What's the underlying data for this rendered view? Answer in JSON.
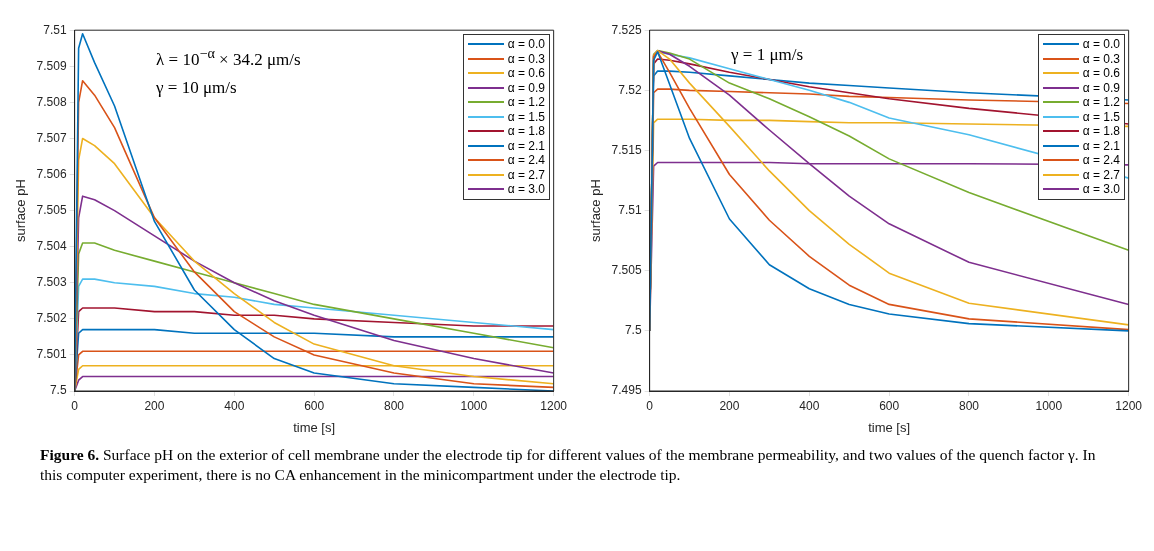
{
  "chart_data": [
    {
      "type": "line",
      "xlabel": "time [s]",
      "ylabel": "surface pH",
      "x": [
        0,
        10,
        20,
        50,
        100,
        200,
        300,
        400,
        500,
        600,
        800,
        1000,
        1200
      ],
      "xlim": [
        0,
        1200
      ],
      "xticks": [
        0,
        200,
        400,
        600,
        800,
        1000,
        1200
      ],
      "ylim": [
        7.5,
        7.51
      ],
      "yticks": [
        7.5,
        7.501,
        7.502,
        7.503,
        7.504,
        7.505,
        7.506,
        7.507,
        7.508,
        7.509,
        7.51
      ],
      "grid": false,
      "legend": "top right",
      "marker": "none",
      "line_style": "solid",
      "annotations": [
        "λ = 10$^{−α}$ × 34.2 μm/s",
        "γ = 10 μm/s"
      ],
      "series": [
        {
          "name": "α = 0.0",
          "color": "#0072bd",
          "values": [
            7.5,
            7.5095,
            7.5099,
            7.5091,
            7.5079,
            7.5047,
            7.5028,
            7.5017,
            7.5009,
            7.5005,
            7.5002,
            7.5001,
            7.5
          ]
        },
        {
          "name": "α = 0.3",
          "color": "#d95319",
          "values": [
            7.5,
            7.508,
            7.5086,
            7.5082,
            7.5073,
            7.5048,
            7.5033,
            7.5022,
            7.5015,
            7.501,
            7.5005,
            7.5002,
            7.5001
          ]
        },
        {
          "name": "α = 0.6",
          "color": "#edb120",
          "values": [
            7.5,
            7.5064,
            7.507,
            7.5068,
            7.5063,
            7.5048,
            7.5036,
            7.5027,
            7.5019,
            7.5013,
            7.5007,
            7.5004,
            7.5002
          ]
        },
        {
          "name": "α = 0.9",
          "color": "#7e2f8e",
          "values": [
            7.5,
            7.5048,
            7.5054,
            7.5053,
            7.505,
            7.5043,
            7.5036,
            7.503,
            7.5025,
            7.5021,
            7.5014,
            7.5009,
            7.5005
          ]
        },
        {
          "name": "α = 1.2",
          "color": "#77ac30",
          "values": [
            7.5,
            7.5038,
            7.5041,
            7.5041,
            7.5039,
            7.5036,
            7.5033,
            7.503,
            7.5027,
            7.5024,
            7.502,
            7.5016,
            7.5012
          ]
        },
        {
          "name": "α = 1.5",
          "color": "#4dbeee",
          "values": [
            7.5,
            7.5029,
            7.5031,
            7.5031,
            7.503,
            7.5029,
            7.5027,
            7.5026,
            7.5024,
            7.5023,
            7.5021,
            7.5019,
            7.5017
          ]
        },
        {
          "name": "α = 1.8",
          "color": "#a2142f",
          "values": [
            7.5,
            7.5022,
            7.5023,
            7.5023,
            7.5023,
            7.5022,
            7.5022,
            7.5021,
            7.5021,
            7.502,
            7.5019,
            7.5018,
            7.5018
          ]
        },
        {
          "name": "α = 2.1",
          "color": "#0072bd",
          "values": [
            7.5,
            7.5016,
            7.5017,
            7.5017,
            7.5017,
            7.5017,
            7.5016,
            7.5016,
            7.5016,
            7.5016,
            7.5015,
            7.5015,
            7.5015
          ]
        },
        {
          "name": "α = 2.4",
          "color": "#d95319",
          "values": [
            7.5,
            7.501,
            7.5011,
            7.5011,
            7.5011,
            7.5011,
            7.5011,
            7.5011,
            7.5011,
            7.5011,
            7.5011,
            7.5011,
            7.5011
          ]
        },
        {
          "name": "α = 2.7",
          "color": "#edb120",
          "values": [
            7.5,
            7.5006,
            7.5007,
            7.5007,
            7.5007,
            7.5007,
            7.5007,
            7.5007,
            7.5007,
            7.5007,
            7.5007,
            7.5007,
            7.5007
          ]
        },
        {
          "name": "α = 3.0",
          "color": "#7e2f8e",
          "values": [
            7.5,
            7.5003,
            7.5004,
            7.5004,
            7.5004,
            7.5004,
            7.5004,
            7.5004,
            7.5004,
            7.5004,
            7.5004,
            7.5004,
            7.5004
          ]
        }
      ]
    },
    {
      "type": "line",
      "xlabel": "time [s]",
      "ylabel": "surface pH",
      "x": [
        0,
        10,
        20,
        50,
        100,
        200,
        300,
        400,
        500,
        600,
        800,
        1200
      ],
      "xlim": [
        0,
        1200
      ],
      "xticks": [
        0,
        200,
        400,
        600,
        800,
        1000,
        1200
      ],
      "ylim": [
        7.495,
        7.525
      ],
      "yticks": [
        7.495,
        7.5,
        7.505,
        7.51,
        7.515,
        7.52,
        7.525
      ],
      "grid": false,
      "legend": "top right",
      "marker": "none",
      "line_style": "solid",
      "annotations": [
        "γ = 1 μm/s"
      ],
      "series": [
        {
          "name": "α = 0.0",
          "color": "#0072bd",
          "values": [
            7.5,
            7.5225,
            7.5232,
            7.5205,
            7.516,
            7.5093,
            7.5055,
            7.5035,
            7.5022,
            7.5014,
            7.5006,
            7.5
          ]
        },
        {
          "name": "α = 0.3",
          "color": "#d95319",
          "values": [
            7.5,
            7.5228,
            7.5232,
            7.5215,
            7.5185,
            7.513,
            7.5092,
            7.5062,
            7.5038,
            7.5022,
            7.501,
            7.5001
          ]
        },
        {
          "name": "α = 0.6",
          "color": "#edb120",
          "values": [
            7.5,
            7.5229,
            7.5233,
            7.5226,
            7.5206,
            7.517,
            7.5133,
            7.51,
            7.5072,
            7.5048,
            7.5023,
            7.5005
          ]
        },
        {
          "name": "α = 0.9",
          "color": "#7e2f8e",
          "values": [
            7.5,
            7.5229,
            7.5233,
            7.523,
            7.522,
            7.5196,
            7.5167,
            7.5139,
            7.5112,
            7.5089,
            7.5057,
            7.5022
          ]
        },
        {
          "name": "α = 1.2",
          "color": "#77ac30",
          "values": [
            7.5,
            7.523,
            7.5233,
            7.5231,
            7.5226,
            7.5206,
            7.5193,
            7.5178,
            7.5162,
            7.5143,
            7.5115,
            7.5067
          ]
        },
        {
          "name": "α = 1.5",
          "color": "#4dbeee",
          "values": [
            7.5,
            7.5228,
            7.5232,
            7.523,
            7.5227,
            7.5218,
            7.5209,
            7.52,
            7.519,
            7.5177,
            7.5163,
            7.5127
          ]
        },
        {
          "name": "α = 1.8",
          "color": "#a2142f",
          "values": [
            7.5,
            7.5222,
            7.5226,
            7.5225,
            7.5222,
            7.5215,
            7.5209,
            7.5203,
            7.5198,
            7.5193,
            7.5185,
            7.5172
          ]
        },
        {
          "name": "α = 2.1",
          "color": "#0072bd",
          "values": [
            7.5,
            7.5212,
            7.5216,
            7.5216,
            7.5215,
            7.5212,
            7.5209,
            7.5206,
            7.5204,
            7.5202,
            7.5198,
            7.5192
          ]
        },
        {
          "name": "α = 2.4",
          "color": "#d95319",
          "values": [
            7.5,
            7.5198,
            7.5201,
            7.5201,
            7.52,
            7.5199,
            7.5198,
            7.5197,
            7.5195,
            7.5194,
            7.5192,
            7.5189
          ]
        },
        {
          "name": "α = 2.7",
          "color": "#edb120",
          "values": [
            7.5,
            7.5173,
            7.5176,
            7.5176,
            7.5176,
            7.5175,
            7.5175,
            7.5174,
            7.5173,
            7.5173,
            7.5172,
            7.517
          ]
        },
        {
          "name": "α = 3.0",
          "color": "#7e2f8e",
          "values": [
            7.5,
            7.5137,
            7.514,
            7.514,
            7.514,
            7.514,
            7.514,
            7.5139,
            7.5139,
            7.5139,
            7.5139,
            7.5138
          ]
        }
      ]
    },
    {
      "type": "other",
      "annotations": [
        "Figure 6.",
        "Surface pH on the exterior of cell membrane under the electrode tip for different values of the membrane permeability, and two values of the quench factor γ. In this computer experiment, there is no CA enhancement in the minicompartment under the electrode tip."
      ]
    }
  ]
}
